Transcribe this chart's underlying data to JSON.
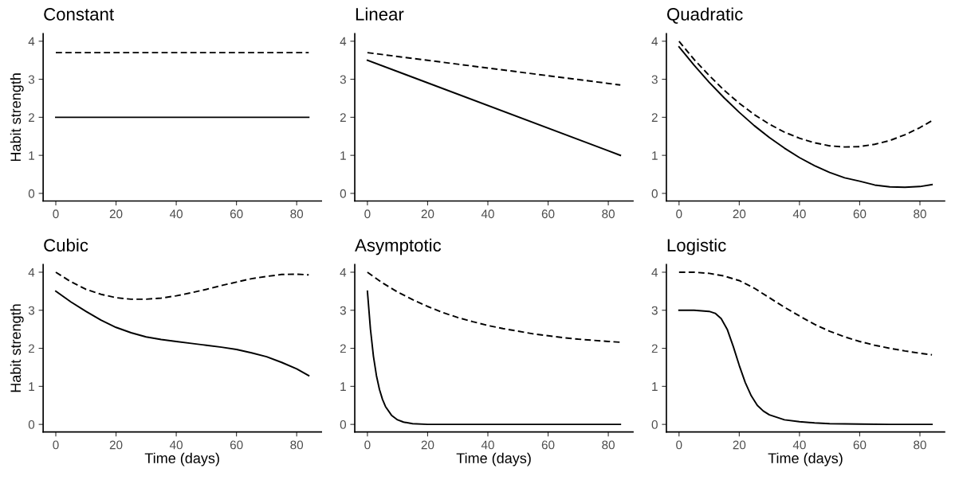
{
  "chart_data": [
    {
      "type": "line",
      "title": "Constant",
      "ylabel": "Habit strength",
      "xlim": [
        -4.2,
        88.2
      ],
      "ylim": [
        -0.2,
        4.2
      ],
      "xticks": [
        0,
        20,
        40,
        60,
        80
      ],
      "yticks": [
        0,
        1,
        2,
        3,
        4
      ],
      "grid": false,
      "marker": "none",
      "series": [
        {
          "color": "#000000",
          "line_style": "dashed",
          "x": [
            0,
            84
          ],
          "values": [
            3.7,
            3.7
          ]
        },
        {
          "color": "#000000",
          "line_style": "solid",
          "x": [
            0,
            84
          ],
          "values": [
            2.0,
            2.0
          ]
        }
      ]
    },
    {
      "type": "line",
      "title": "Linear",
      "xlim": [
        -4.2,
        88.2
      ],
      "ylim": [
        -0.2,
        4.2
      ],
      "xticks": [
        0,
        20,
        40,
        60,
        80
      ],
      "yticks": [
        0,
        1,
        2,
        3,
        4
      ],
      "grid": false,
      "marker": "none",
      "series": [
        {
          "color": "#000000",
          "line_style": "dashed",
          "x": [
            0,
            84
          ],
          "values": [
            3.7,
            2.85
          ]
        },
        {
          "color": "#000000",
          "line_style": "solid",
          "x": [
            0,
            84
          ],
          "values": [
            3.5,
            1.0
          ]
        }
      ]
    },
    {
      "type": "line",
      "title": "Quadratic",
      "xlim": [
        -4.2,
        88.2
      ],
      "ylim": [
        -0.2,
        4.2
      ],
      "xticks": [
        0,
        20,
        40,
        60,
        80
      ],
      "yticks": [
        0,
        1,
        2,
        3,
        4
      ],
      "grid": false,
      "marker": "none",
      "series": [
        {
          "color": "#000000",
          "line_style": "dashed",
          "x": [
            0,
            5,
            10,
            15,
            20,
            25,
            30,
            35,
            40,
            45,
            50,
            55,
            60,
            65,
            70,
            75,
            80,
            84
          ],
          "values": [
            4.0,
            3.52,
            3.1,
            2.71,
            2.37,
            2.07,
            1.82,
            1.61,
            1.45,
            1.33,
            1.25,
            1.22,
            1.23,
            1.29,
            1.39,
            1.54,
            1.73,
            1.91
          ]
        },
        {
          "color": "#000000",
          "line_style": "solid",
          "x": [
            0,
            5,
            10,
            15,
            20,
            25,
            30,
            35,
            40,
            45,
            50,
            55,
            60,
            65,
            70,
            75,
            80,
            84
          ],
          "values": [
            3.85,
            3.37,
            2.92,
            2.51,
            2.13,
            1.78,
            1.47,
            1.19,
            0.94,
            0.73,
            0.55,
            0.41,
            0.32,
            0.22,
            0.17,
            0.16,
            0.18,
            0.23
          ]
        }
      ]
    },
    {
      "type": "line",
      "title": "Cubic",
      "xlabel": "Time (days)",
      "ylabel": "Habit strength",
      "xlim": [
        -4.2,
        88.2
      ],
      "ylim": [
        -0.2,
        4.2
      ],
      "xticks": [
        0,
        20,
        40,
        60,
        80
      ],
      "yticks": [
        0,
        1,
        2,
        3,
        4
      ],
      "grid": false,
      "marker": "none",
      "series": [
        {
          "color": "#000000",
          "line_style": "dashed",
          "x": [
            0,
            5,
            10,
            15,
            20,
            25,
            30,
            35,
            40,
            45,
            50,
            55,
            60,
            65,
            70,
            75,
            80,
            84
          ],
          "values": [
            4.0,
            3.75,
            3.55,
            3.42,
            3.33,
            3.29,
            3.29,
            3.32,
            3.38,
            3.46,
            3.55,
            3.65,
            3.74,
            3.83,
            3.89,
            3.94,
            3.95,
            3.93
          ]
        },
        {
          "color": "#000000",
          "line_style": "solid",
          "x": [
            0,
            5,
            10,
            15,
            20,
            25,
            30,
            35,
            40,
            45,
            50,
            55,
            60,
            65,
            70,
            75,
            80,
            84
          ],
          "values": [
            3.5,
            3.22,
            2.97,
            2.74,
            2.55,
            2.41,
            2.3,
            2.23,
            2.18,
            2.13,
            2.08,
            2.03,
            1.97,
            1.88,
            1.78,
            1.63,
            1.46,
            1.28
          ]
        }
      ]
    },
    {
      "type": "line",
      "title": "Asymptotic",
      "xlabel": "Time (days)",
      "xlim": [
        -4.2,
        88.2
      ],
      "ylim": [
        -0.2,
        4.2
      ],
      "xticks": [
        0,
        20,
        40,
        60,
        80
      ],
      "yticks": [
        0,
        1,
        2,
        3,
        4
      ],
      "grid": false,
      "marker": "none",
      "series": [
        {
          "color": "#000000",
          "line_style": "dashed",
          "x": [
            0,
            5,
            10,
            15,
            20,
            25,
            30,
            35,
            40,
            45,
            50,
            55,
            60,
            65,
            70,
            75,
            80,
            84
          ],
          "values": [
            4.0,
            3.72,
            3.48,
            3.28,
            3.1,
            2.94,
            2.81,
            2.7,
            2.6,
            2.52,
            2.45,
            2.38,
            2.33,
            2.28,
            2.24,
            2.21,
            2.18,
            2.16
          ]
        },
        {
          "color": "#000000",
          "line_style": "solid",
          "x": [
            0,
            1,
            2,
            3,
            4,
            5,
            6,
            8,
            10,
            12,
            15,
            20,
            30,
            40,
            50,
            60,
            70,
            84
          ],
          "values": [
            3.5,
            2.51,
            1.79,
            1.28,
            0.92,
            0.66,
            0.47,
            0.24,
            0.12,
            0.06,
            0.02,
            0,
            0,
            0,
            0,
            0,
            0,
            0
          ]
        }
      ]
    },
    {
      "type": "line",
      "title": "Logistic",
      "xlabel": "Time (days)",
      "xlim": [
        -4.2,
        88.2
      ],
      "ylim": [
        -0.2,
        4.2
      ],
      "xticks": [
        0,
        20,
        40,
        60,
        80
      ],
      "yticks": [
        0,
        1,
        2,
        3,
        4
      ],
      "grid": false,
      "marker": "none",
      "series": [
        {
          "color": "#000000",
          "line_style": "dashed",
          "x": [
            0,
            5,
            10,
            15,
            20,
            25,
            30,
            35,
            40,
            45,
            50,
            55,
            60,
            65,
            70,
            75,
            80,
            84
          ],
          "values": [
            4.0,
            4.0,
            3.97,
            3.9,
            3.78,
            3.58,
            3.33,
            3.08,
            2.85,
            2.63,
            2.45,
            2.3,
            2.18,
            2.08,
            2.0,
            1.93,
            1.87,
            1.83
          ]
        },
        {
          "color": "#000000",
          "line_style": "solid",
          "x": [
            0,
            5,
            10,
            12,
            14,
            16,
            18,
            20,
            22,
            24,
            26,
            28,
            30,
            35,
            40,
            45,
            50,
            60,
            70,
            84
          ],
          "values": [
            3.0,
            3.0,
            2.97,
            2.92,
            2.78,
            2.5,
            2.05,
            1.55,
            1.1,
            0.75,
            0.5,
            0.35,
            0.25,
            0.12,
            0.07,
            0.04,
            0.02,
            0.01,
            0,
            0
          ]
        }
      ]
    }
  ]
}
